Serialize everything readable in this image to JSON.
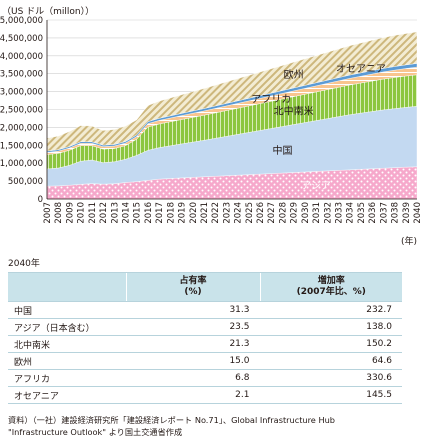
{
  "chart_data": {
    "type": "area",
    "stacked": true,
    "ylabel": "（US ドル（millon））",
    "xunit": "(年)",
    "ylim": [
      0,
      5000000
    ],
    "yticks": [
      "0",
      "500,000",
      "1,000,000",
      "1,500,000",
      "2,000,000",
      "2,500,000",
      "3,000,000",
      "3,500,000",
      "4,000,000",
      "4,500,000",
      "5,000,000"
    ],
    "grid": true,
    "x": [
      2007,
      2008,
      2009,
      2010,
      2011,
      2012,
      2013,
      2014,
      2015,
      2016,
      2017,
      2018,
      2019,
      2020,
      2021,
      2022,
      2023,
      2024,
      2025,
      2026,
      2027,
      2028,
      2029,
      2030,
      2031,
      2032,
      2033,
      2034,
      2035,
      2036,
      2037,
      2038,
      2039,
      2040
    ],
    "series": [
      {
        "name": "アジア",
        "color": "#f29ac2",
        "values": [
          360000,
          365000,
          385000,
          410000,
          430000,
          415000,
          425000,
          460000,
          485000,
          520000,
          555000,
          572000,
          590000,
          605000,
          620000,
          635000,
          650000,
          665000,
          680000,
          695000,
          710000,
          725000,
          740000,
          755000,
          770000,
          785000,
          800000,
          815000,
          830000,
          845000,
          860000,
          875000,
          890000,
          900000
        ]
      },
      {
        "name": "中国",
        "color": "#bcd5ef",
        "values": [
          480000,
          500000,
          555000,
          645000,
          660000,
          600000,
          615000,
          650000,
          735000,
          840000,
          880000,
          915000,
          950000,
          985000,
          1020000,
          1060000,
          1100000,
          1140000,
          1180000,
          1220000,
          1260000,
          1300000,
          1340000,
          1380000,
          1420000,
          1460000,
          1500000,
          1540000,
          1570000,
          1600000,
          1630000,
          1650000,
          1670000,
          1690000
        ]
      },
      {
        "name": "北中南米",
        "color": "#8cc63f",
        "values": [
          400000,
          410000,
          420000,
          435000,
          400000,
          380000,
          370000,
          380000,
          450000,
          650000,
          660000,
          670000,
          680000,
          690000,
          700000,
          710000,
          720000,
          730000,
          740000,
          750000,
          760000,
          770000,
          780000,
          790000,
          800000,
          810000,
          820000,
          830000,
          840000,
          850000,
          860000,
          870000,
          875000,
          880000
        ]
      },
      {
        "name": "アフリカ",
        "color": "#f6b26b",
        "values": [
          60000,
          62000,
          64000,
          66000,
          66000,
          68000,
          70000,
          72000,
          75000,
          95000,
          100000,
          105000,
          110000,
          115000,
          120000,
          125000,
          130000,
          135000,
          140000,
          145000,
          150000,
          155000,
          160000,
          165000,
          170000,
          175000,
          180000,
          185000,
          190000,
          195000,
          200000,
          205000,
          210000,
          215000
        ]
      },
      {
        "name": "オセアニア",
        "color": "#5b9bd5",
        "values": [
          40000,
          40000,
          41000,
          43000,
          42000,
          42000,
          43000,
          44000,
          46000,
          56000,
          58000,
          60000,
          62000,
          64000,
          66000,
          68000,
          70000,
          72000,
          74000,
          76000,
          78000,
          80000,
          82000,
          84000,
          86000,
          88000,
          90000,
          92000,
          94000,
          96000,
          98000,
          100000,
          101000,
          102000
        ]
      },
      {
        "name": "欧州",
        "color": "#d9c48f",
        "values": [
          360000,
          380000,
          420000,
          450000,
          440000,
          410000,
          420000,
          430000,
          420000,
          450000,
          480000,
          500000,
          520000,
          540000,
          560000,
          580000,
          600000,
          620000,
          640000,
          660000,
          680000,
          700000,
          720000,
          740000,
          760000,
          780000,
          800000,
          820000,
          835000,
          850000,
          860000,
          870000,
          875000,
          880000
        ]
      }
    ]
  },
  "table": {
    "title": "2040年",
    "headers": [
      "",
      "占有率\n(%)",
      "増加率\n(2007年比、%)"
    ],
    "rows": [
      {
        "region": "中国",
        "share": "31.3",
        "growth": "232.7"
      },
      {
        "region": "アジア（日本含む）",
        "share": "23.5",
        "growth": "138.0"
      },
      {
        "region": "北中南米",
        "share": "21.3",
        "growth": "150.2"
      },
      {
        "region": "欧州",
        "share": "15.0",
        "growth": "64.6"
      },
      {
        "region": "アフリカ",
        "share": "6.8",
        "growth": "330.6"
      },
      {
        "region": "オセアニア",
        "share": "2.1",
        "growth": "145.5"
      }
    ]
  },
  "source": {
    "line1": "資料）（一社）建設経済研究所「建設経済レポート No.71」、Global Infrastructure Hub",
    "line2": "\"Infrastructure Outlook\" より国土交通省作成"
  }
}
